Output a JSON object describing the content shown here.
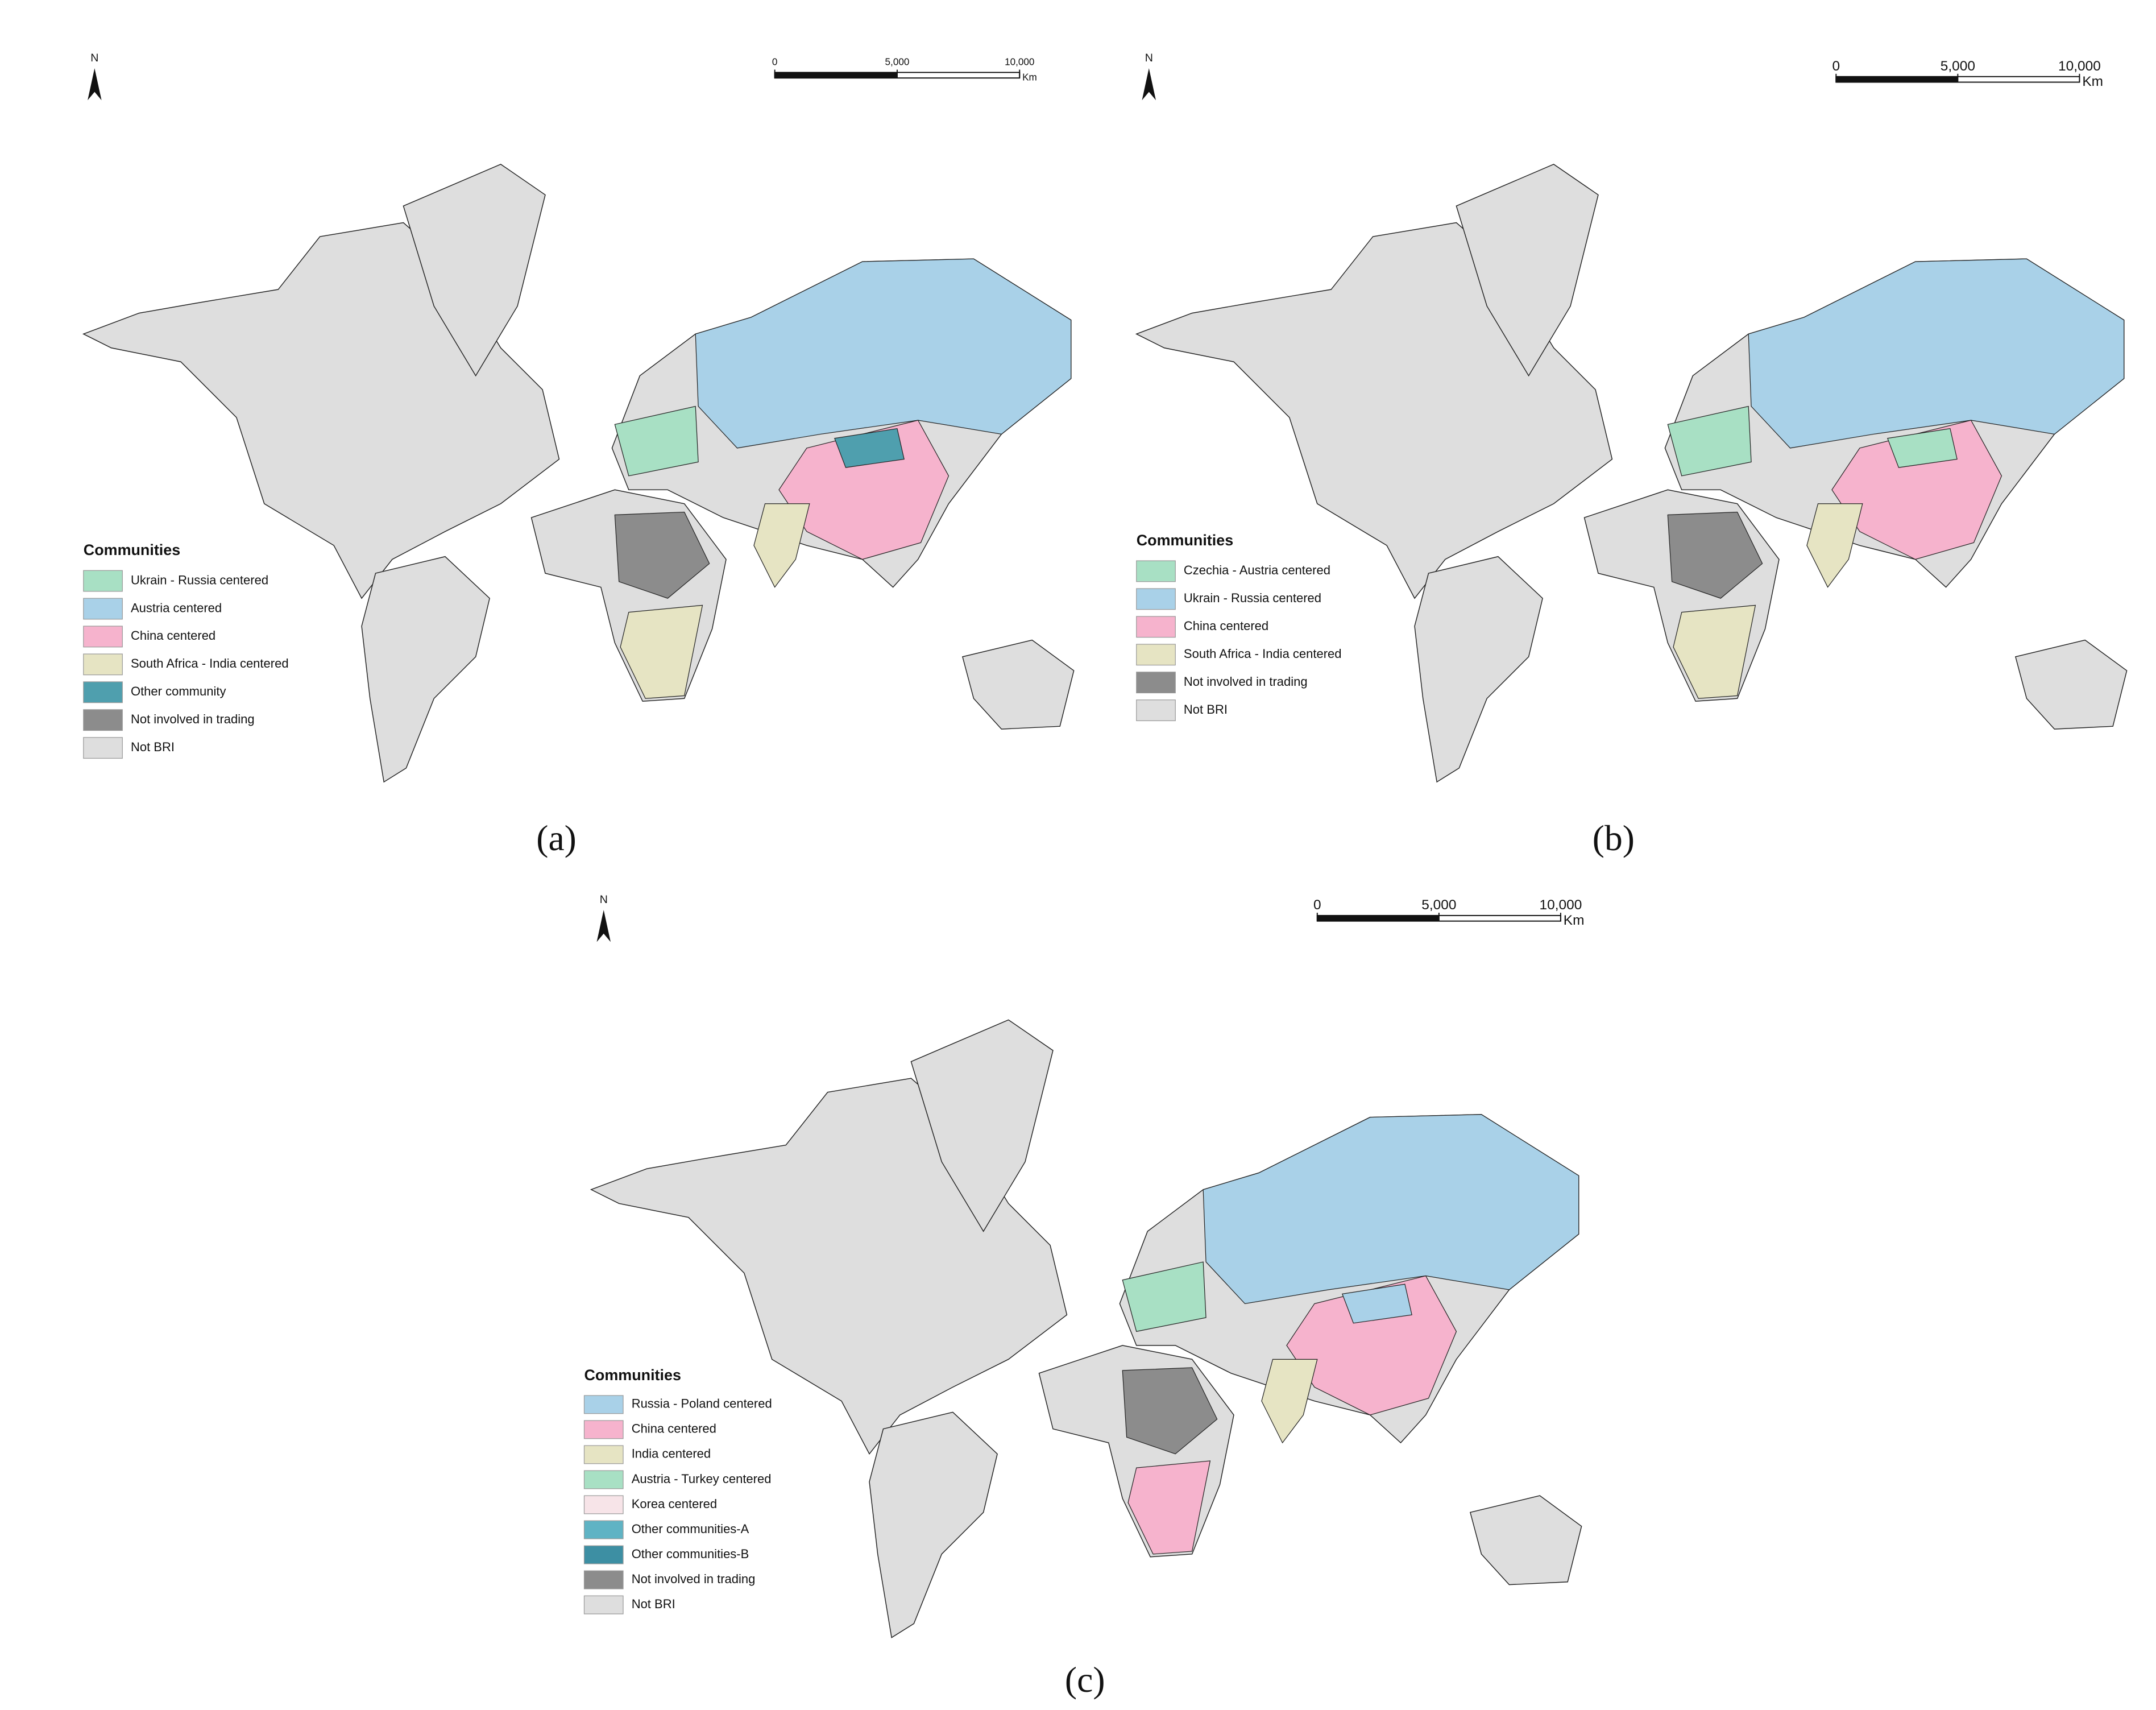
{
  "panels": [
    {
      "label": "(a)",
      "north": "N",
      "legend_title": "Communities",
      "legend": [
        {
          "label": "Ukrain - Russia centered",
          "color": "#a8e0c4"
        },
        {
          "label": "Austria centered",
          "color": "#a9d1e8"
        },
        {
          "label": "China centered",
          "color": "#f6b3cd"
        },
        {
          "label": "South Africa - India centered",
          "color": "#e6e4c3"
        },
        {
          "label": "Other community",
          "color": "#4f9fae"
        },
        {
          "label": "Not involved in trading",
          "color": "#8c8c8c"
        },
        {
          "label": "Not BRI",
          "color": "#dedede"
        }
      ],
      "scale": {
        "ticks": [
          0,
          {
            "value": 5000,
            "label": "5,000"
          },
          {
            "value": 10000,
            "label": "10,000"
          }
        ],
        "unit": "Km"
      }
    },
    {
      "label": "(b)",
      "north": "N",
      "legend_title": "Communities",
      "legend": [
        {
          "label": "Czechia - Austria centered",
          "color": "#a8e0c4"
        },
        {
          "label": "Ukrain - Russia centered",
          "color": "#a9d1e8"
        },
        {
          "label": "China centered",
          "color": "#f6b3cd"
        },
        {
          "label": "South Africa - India centered",
          "color": "#e6e4c3"
        },
        {
          "label": "Not involved in trading",
          "color": "#8c8c8c"
        },
        {
          "label": "Not BRI",
          "color": "#dedede"
        }
      ],
      "scale": {
        "ticks": [
          0,
          {
            "value": 5000,
            "label": "5,000"
          },
          {
            "value": 10000,
            "label": "10,000"
          }
        ],
        "unit": "Km"
      }
    },
    {
      "label": "(c)",
      "north": "N",
      "legend_title": "Communities",
      "legend": [
        {
          "label": "Russia - Poland centered",
          "color": "#a9d1e8"
        },
        {
          "label": "China centered",
          "color": "#f6b3cd"
        },
        {
          "label": "India centered",
          "color": "#e6e4c3"
        },
        {
          "label": "Austria - Turkey centered",
          "color": "#a8e0c4"
        },
        {
          "label": "Korea centered",
          "color": "#f7e4e8"
        },
        {
          "label": "Other communities-A",
          "color": "#5fb3c4"
        },
        {
          "label": "Other communities-B",
          "color": "#3d8fa3"
        },
        {
          "label": "Not involved in trading",
          "color": "#8c8c8c"
        },
        {
          "label": "Not BRI",
          "color": "#dedede"
        }
      ],
      "scale": {
        "ticks": [
          0,
          {
            "value": 5000,
            "label": "5,000"
          },
          {
            "value": 10000,
            "label": "10,000"
          }
        ],
        "unit": "Km"
      }
    }
  ]
}
